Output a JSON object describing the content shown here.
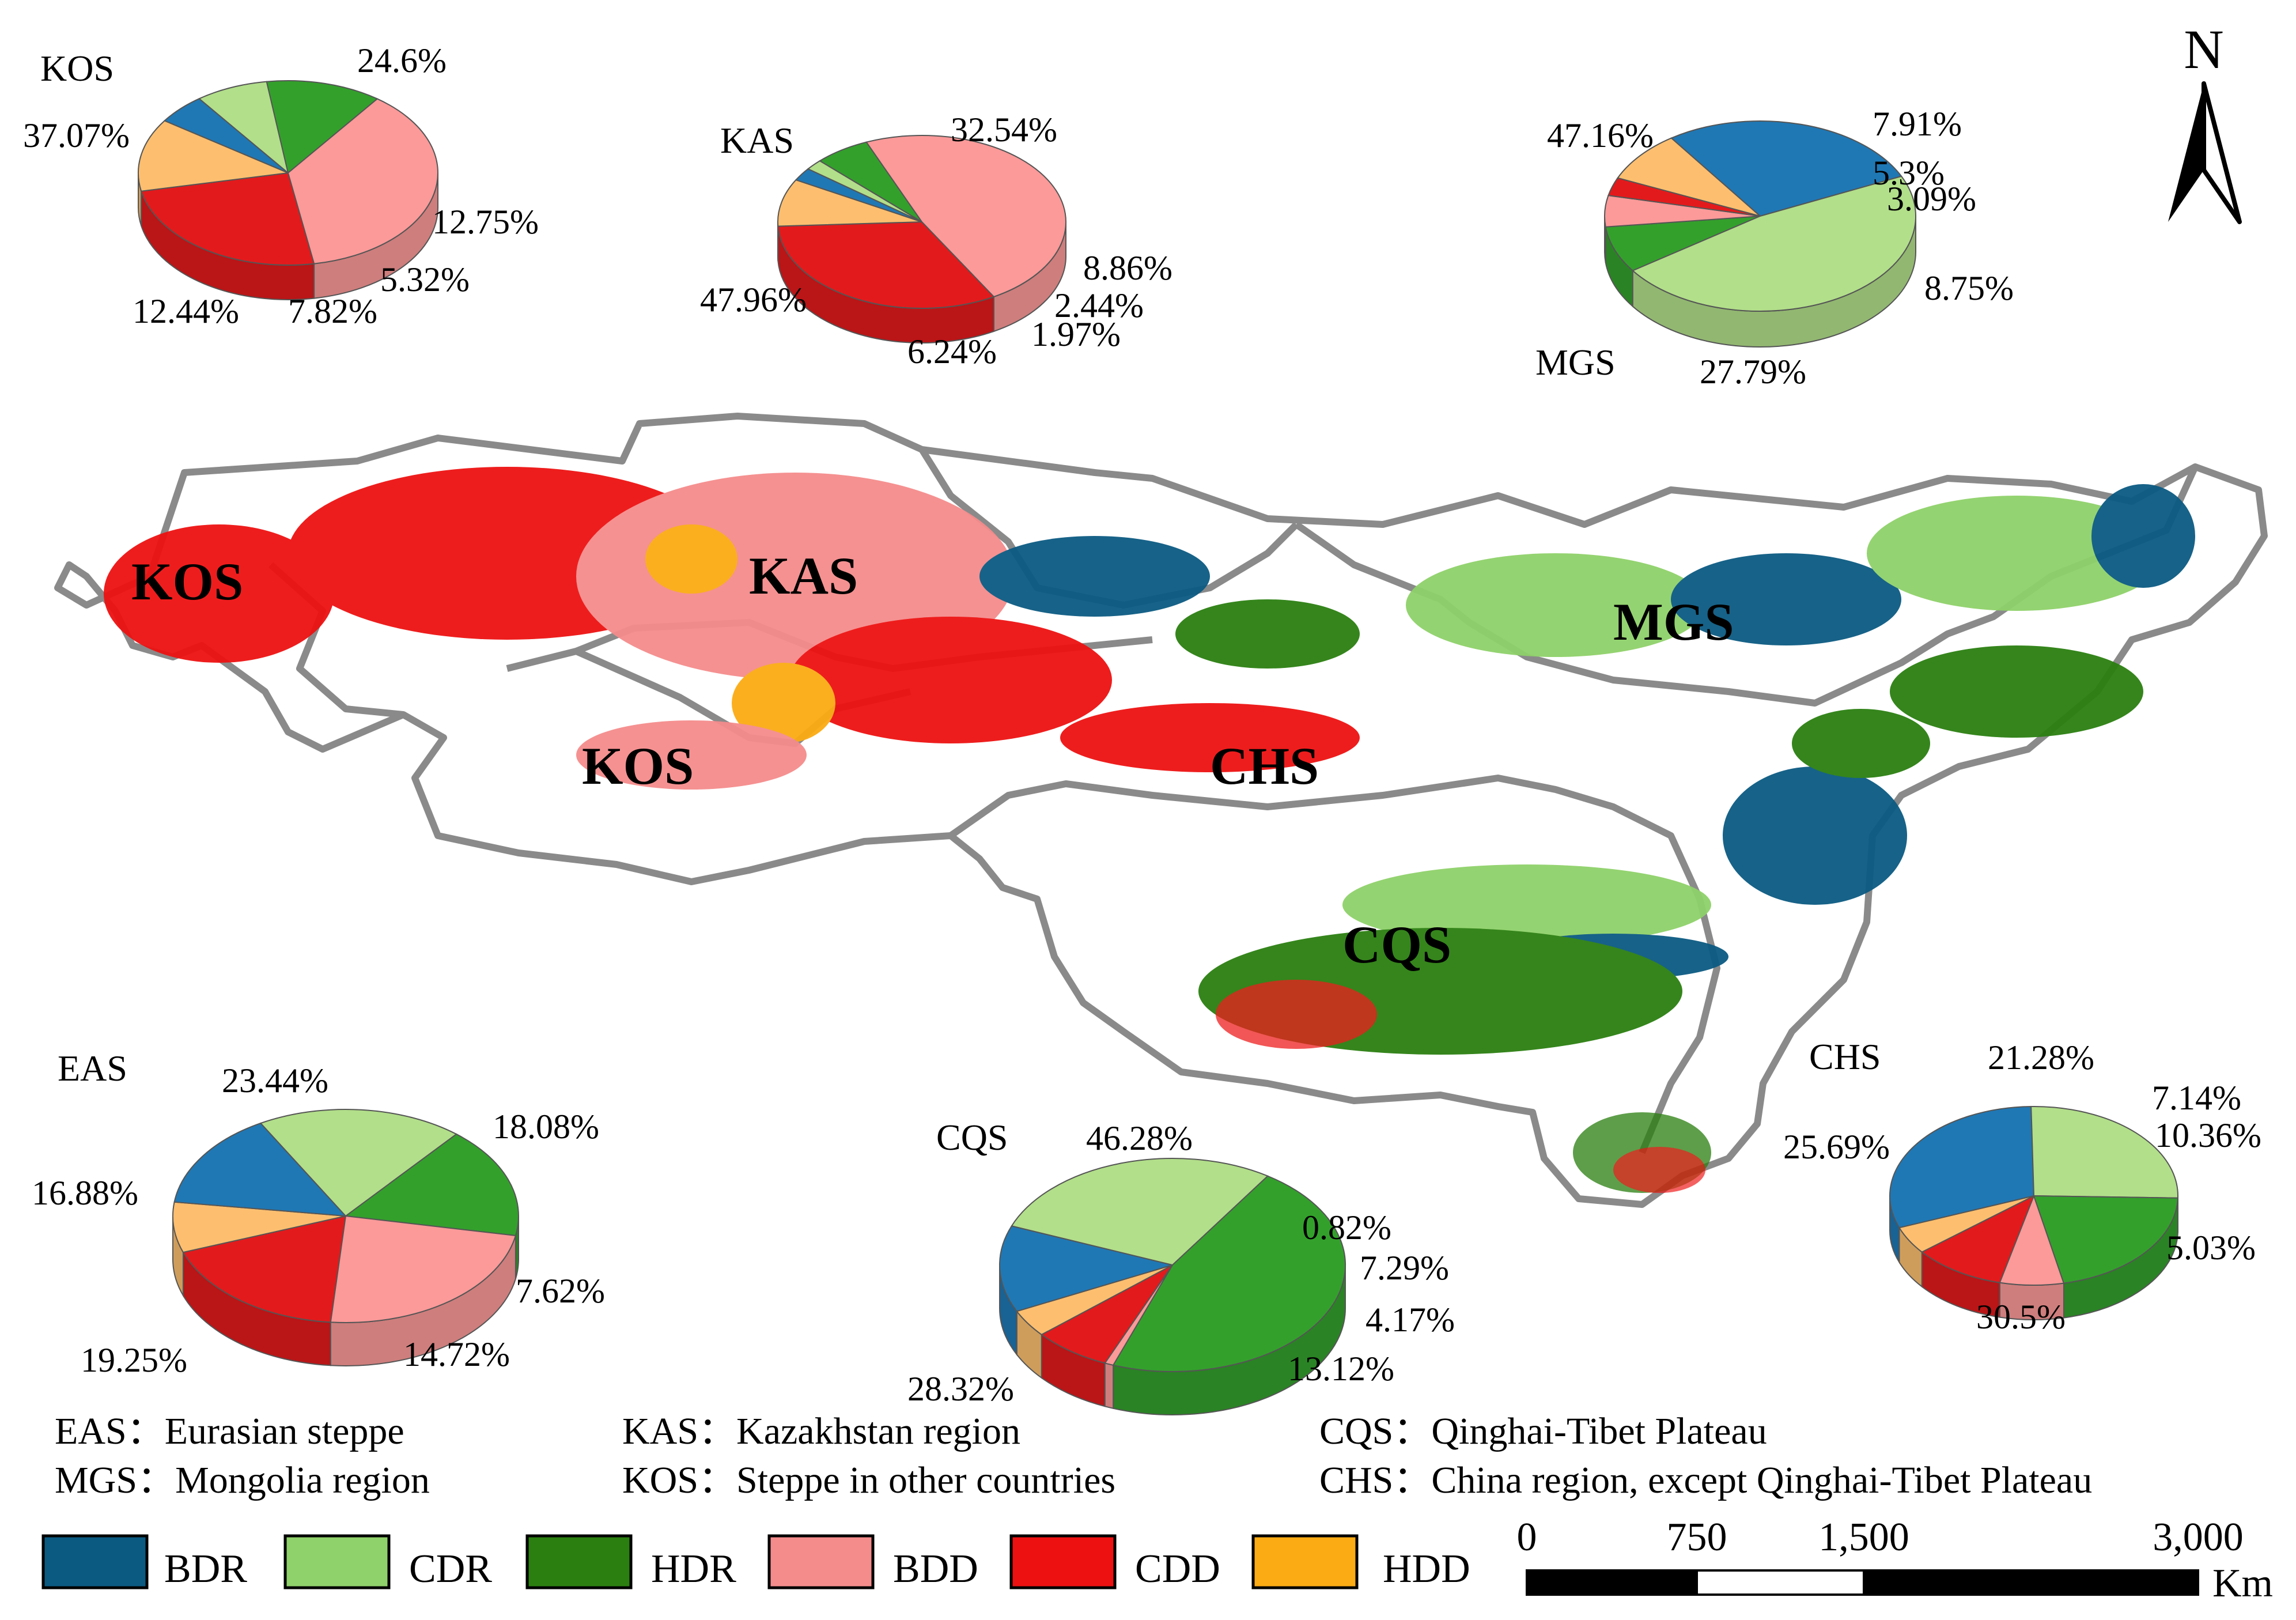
{
  "colors": {
    "BDR": "#0b5a82",
    "CDR": "#8fd16a",
    "HDR": "#2b7f10",
    "BDD": "#f58c8c",
    "CDD": "#ee1111",
    "HDD": "#fbab13",
    "pie_BDR": "#1f78b4",
    "pie_CDR": "#b2df8a",
    "pie_HDR": "#33a02c",
    "pie_BDD": "#fb9a99",
    "pie_CDD": "#e31a1c",
    "pie_HDD": "#fdbf6f",
    "boundary": "#8a8a8a"
  },
  "north_arrow": {
    "label": "N"
  },
  "region_labels": [
    "KOS",
    "KAS",
    "MGS",
    "KOS",
    "CHS",
    "CQS"
  ],
  "pies": [
    {
      "id": "KOS",
      "title": "KOS",
      "slices": [
        {
          "class": "CDD",
          "value": 24.6,
          "label": "24.6%"
        },
        {
          "class": "HDD",
          "value": 12.75,
          "label": "12.75%"
        },
        {
          "class": "BDR",
          "value": 5.32,
          "label": "5.32%"
        },
        {
          "class": "CDR",
          "value": 7.82,
          "label": "7.82%"
        },
        {
          "class": "HDR",
          "value": 12.44,
          "label": "12.44%"
        },
        {
          "class": "BDD",
          "value": 37.07,
          "label": "37.07%"
        }
      ]
    },
    {
      "id": "KAS",
      "title": "KAS",
      "slices": [
        {
          "class": "CDD",
          "value": 32.54,
          "label": "32.54%"
        },
        {
          "class": "HDD",
          "value": 8.86,
          "label": "8.86%"
        },
        {
          "class": "BDR",
          "value": 2.44,
          "label": "2.44%"
        },
        {
          "class": "CDR",
          "value": 1.97,
          "label": "1.97%"
        },
        {
          "class": "HDR",
          "value": 6.24,
          "label": "6.24%"
        },
        {
          "class": "BDD",
          "value": 47.96,
          "label": "47.96%"
        }
      ]
    },
    {
      "id": "MGS",
      "title": "MGS",
      "slices": [
        {
          "class": "HDR",
          "value": 7.91,
          "label": "7.91%"
        },
        {
          "class": "BDD",
          "value": 5.3,
          "label": "5.3%"
        },
        {
          "class": "CDD",
          "value": 3.09,
          "label": "3.09%"
        },
        {
          "class": "HDD",
          "value": 8.75,
          "label": "8.75%"
        },
        {
          "class": "BDR",
          "value": 27.79,
          "label": "27.79%"
        },
        {
          "class": "CDR",
          "value": 47.16,
          "label": "47.16%"
        }
      ]
    },
    {
      "id": "EAS",
      "title": "EAS",
      "slices": [
        {
          "class": "CDD",
          "value": 18.08,
          "label": "18.08%"
        },
        {
          "class": "HDD",
          "value": 7.62,
          "label": "7.62%"
        },
        {
          "class": "BDR",
          "value": 14.72,
          "label": "14.72%"
        },
        {
          "class": "CDR",
          "value": 19.25,
          "label": "19.25%"
        },
        {
          "class": "HDR",
          "value": 16.88,
          "label": "16.88%"
        },
        {
          "class": "BDD",
          "value": 23.44,
          "label": "23.44%"
        }
      ]
    },
    {
      "id": "CQS",
      "title": "CQS",
      "slices": [
        {
          "class": "CDD",
          "value": 7.29,
          "label": "7.29%"
        },
        {
          "class": "HDD",
          "value": 4.17,
          "label": "4.17%"
        },
        {
          "class": "BDR",
          "value": 13.12,
          "label": "13.12%"
        },
        {
          "class": "CDR",
          "value": 28.32,
          "label": "28.32%"
        },
        {
          "class": "HDR",
          "value": 46.28,
          "label": "46.28%"
        },
        {
          "class": "BDD",
          "value": 0.82,
          "label": "0.82%"
        }
      ]
    },
    {
      "id": "CHS",
      "title": "CHS",
      "slices": [
        {
          "class": "BDD",
          "value": 7.14,
          "label": "7.14%"
        },
        {
          "class": "CDD",
          "value": 10.36,
          "label": "10.36%"
        },
        {
          "class": "HDD",
          "value": 5.03,
          "label": "5.03%"
        },
        {
          "class": "BDR",
          "value": 30.5,
          "label": "30.5%"
        },
        {
          "class": "CDR",
          "value": 25.69,
          "label": "25.69%"
        },
        {
          "class": "HDR",
          "value": 21.28,
          "label": "21.28%"
        }
      ]
    }
  ],
  "abbreviations": [
    {
      "code": "EAS",
      "sep": "：",
      "name": "Eurasian steppe"
    },
    {
      "code": "KAS",
      "sep": "：",
      "name": "Kazakhstan  region"
    },
    {
      "code": "CQS",
      "sep": "：",
      "name": "Qinghai-Tibet Plateau"
    },
    {
      "code": "MGS",
      "sep": "：",
      "name": "Mongolia region"
    },
    {
      "code": "KOS",
      "sep": "：",
      "name": "Steppe in other countries"
    },
    {
      "code": "CHS",
      "sep": "：",
      "name": "China region, except Qinghai-Tibet Plateau"
    }
  ],
  "legend": [
    {
      "key": "BDR",
      "label": "BDR"
    },
    {
      "key": "CDR",
      "label": "CDR"
    },
    {
      "key": "HDR",
      "label": "HDR"
    },
    {
      "key": "BDD",
      "label": "BDD"
    },
    {
      "key": "CDD",
      "label": "CDD"
    },
    {
      "key": "HDD",
      "label": "HDD"
    }
  ],
  "scale_bar": {
    "ticks": [
      "0",
      "750",
      "1,500",
      "3,000"
    ],
    "unit": "Km"
  }
}
